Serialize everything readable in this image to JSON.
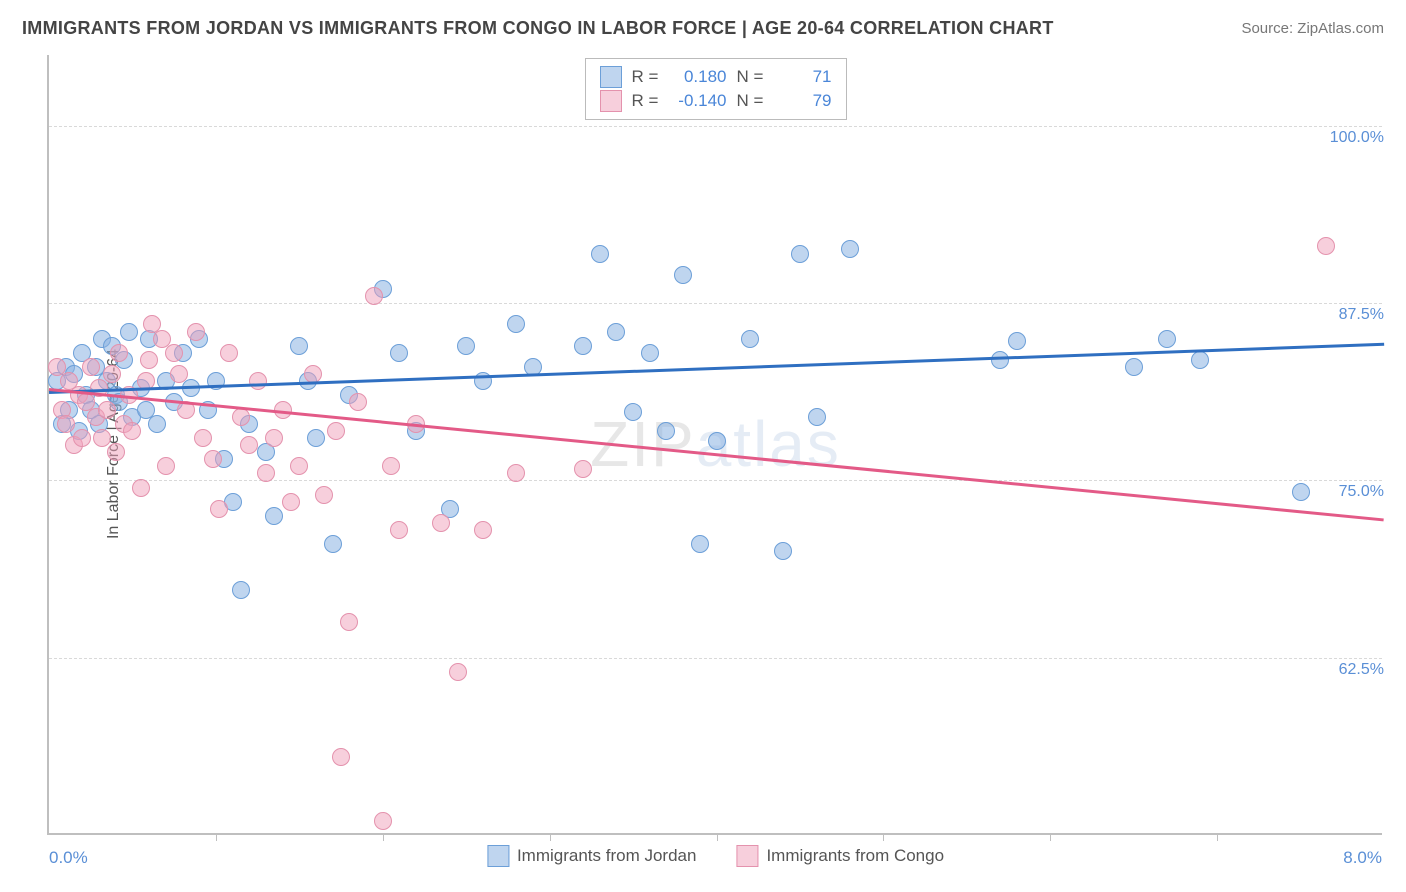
{
  "title": "IMMIGRANTS FROM JORDAN VS IMMIGRANTS FROM CONGO IN LABOR FORCE | AGE 20-64 CORRELATION CHART",
  "source": "Source: ZipAtlas.com",
  "watermark": {
    "part1": "ZIP",
    "part2": "atlas"
  },
  "chart": {
    "type": "scatter",
    "xlim": [
      0,
      8
    ],
    "ylim": [
      50,
      105
    ],
    "xlabel_min": "0.0%",
    "xlabel_max": "8.0%",
    "y_axis_title": "In Labor Force | Age 20-64",
    "x_tick_positions": [
      1,
      2,
      3,
      4,
      5,
      6,
      7
    ],
    "y_gridlines": [
      {
        "value": 62.5,
        "label": "62.5%"
      },
      {
        "value": 75.0,
        "label": "75.0%"
      },
      {
        "value": 87.5,
        "label": "87.5%"
      },
      {
        "value": 100.0,
        "label": "100.0%"
      }
    ],
    "grid_color": "#d9d9d9",
    "background_color": "#ffffff",
    "series": [
      {
        "name": "Immigrants from Jordan",
        "fill": "rgba(138,179,225,0.55)",
        "stroke": "#6c9fd8",
        "line_color": "#2f6fc1",
        "R": "0.180",
        "N": "71",
        "trend": {
          "x1": 0,
          "y1": 81.3,
          "x2": 8,
          "y2": 84.7
        },
        "points": [
          [
            0.05,
            82
          ],
          [
            0.08,
            79
          ],
          [
            0.1,
            83
          ],
          [
            0.12,
            80
          ],
          [
            0.15,
            82.5
          ],
          [
            0.18,
            78.5
          ],
          [
            0.2,
            84
          ],
          [
            0.22,
            81
          ],
          [
            0.25,
            80
          ],
          [
            0.28,
            83
          ],
          [
            0.3,
            79
          ],
          [
            0.32,
            85
          ],
          [
            0.35,
            82
          ],
          [
            0.38,
            84.5
          ],
          [
            0.4,
            81
          ],
          [
            0.42,
            80.5
          ],
          [
            0.45,
            83.5
          ],
          [
            0.48,
            85.5
          ],
          [
            0.5,
            79.5
          ],
          [
            0.55,
            81.5
          ],
          [
            0.58,
            80
          ],
          [
            0.6,
            85
          ],
          [
            0.65,
            79
          ],
          [
            0.7,
            82
          ],
          [
            0.75,
            80.5
          ],
          [
            0.8,
            84
          ],
          [
            0.85,
            81.5
          ],
          [
            0.9,
            85
          ],
          [
            0.95,
            80
          ],
          [
            1.0,
            82
          ],
          [
            1.05,
            76.5
          ],
          [
            1.1,
            73.5
          ],
          [
            1.15,
            67.3
          ],
          [
            1.2,
            79
          ],
          [
            1.3,
            77
          ],
          [
            1.35,
            72.5
          ],
          [
            1.5,
            84.5
          ],
          [
            1.55,
            82
          ],
          [
            1.6,
            78
          ],
          [
            1.7,
            70.5
          ],
          [
            1.8,
            81
          ],
          [
            2.0,
            88.5
          ],
          [
            2.1,
            84
          ],
          [
            2.2,
            78.5
          ],
          [
            2.4,
            73
          ],
          [
            2.5,
            84.5
          ],
          [
            2.6,
            82
          ],
          [
            2.8,
            86
          ],
          [
            2.9,
            83
          ],
          [
            3.2,
            84.5
          ],
          [
            3.3,
            91
          ],
          [
            3.4,
            85.5
          ],
          [
            3.5,
            79.8
          ],
          [
            3.6,
            84
          ],
          [
            3.7,
            78.5
          ],
          [
            3.8,
            89.5
          ],
          [
            3.9,
            70.5
          ],
          [
            4.0,
            77.8
          ],
          [
            4.2,
            85
          ],
          [
            4.4,
            70
          ],
          [
            4.5,
            91
          ],
          [
            4.6,
            79.5
          ],
          [
            4.8,
            91.3
          ],
          [
            5.7,
            83.5
          ],
          [
            5.8,
            84.8
          ],
          [
            6.5,
            83
          ],
          [
            6.7,
            85
          ],
          [
            6.9,
            83.5
          ],
          [
            7.5,
            74.2
          ]
        ]
      },
      {
        "name": "Immigrants from Congo",
        "fill": "rgba(240,160,185,0.5)",
        "stroke": "#e492ad",
        "line_color": "#e35a87",
        "R": "-0.140",
        "N": "79",
        "trend": {
          "x1": 0,
          "y1": 81.5,
          "x2": 8,
          "y2": 72.3
        },
        "points": [
          [
            0.05,
            83
          ],
          [
            0.08,
            80
          ],
          [
            0.1,
            79
          ],
          [
            0.12,
            82
          ],
          [
            0.15,
            77.5
          ],
          [
            0.18,
            81
          ],
          [
            0.2,
            78
          ],
          [
            0.22,
            80.5
          ],
          [
            0.25,
            83
          ],
          [
            0.28,
            79.5
          ],
          [
            0.3,
            81.5
          ],
          [
            0.32,
            78
          ],
          [
            0.35,
            80
          ],
          [
            0.38,
            82.5
          ],
          [
            0.4,
            77
          ],
          [
            0.42,
            84
          ],
          [
            0.45,
            79
          ],
          [
            0.48,
            81
          ],
          [
            0.5,
            78.5
          ],
          [
            0.55,
            74.5
          ],
          [
            0.58,
            82
          ],
          [
            0.6,
            83.5
          ],
          [
            0.62,
            86
          ],
          [
            0.68,
            85
          ],
          [
            0.7,
            76
          ],
          [
            0.75,
            84
          ],
          [
            0.78,
            82.5
          ],
          [
            0.82,
            80
          ],
          [
            0.88,
            85.5
          ],
          [
            0.92,
            78
          ],
          [
            0.98,
            76.5
          ],
          [
            1.02,
            73
          ],
          [
            1.08,
            84
          ],
          [
            1.15,
            79.5
          ],
          [
            1.2,
            77.5
          ],
          [
            1.25,
            82
          ],
          [
            1.3,
            75.5
          ],
          [
            1.35,
            78
          ],
          [
            1.4,
            80
          ],
          [
            1.45,
            73.5
          ],
          [
            1.5,
            76
          ],
          [
            1.58,
            82.5
          ],
          [
            1.65,
            74
          ],
          [
            1.72,
            78.5
          ],
          [
            1.75,
            55.5
          ],
          [
            1.8,
            65
          ],
          [
            1.85,
            80.5
          ],
          [
            1.95,
            88
          ],
          [
            2.0,
            51
          ],
          [
            2.05,
            76
          ],
          [
            2.1,
            71.5
          ],
          [
            2.2,
            79
          ],
          [
            2.35,
            72
          ],
          [
            2.45,
            61.5
          ],
          [
            2.6,
            71.5
          ],
          [
            2.8,
            75.5
          ],
          [
            3.2,
            75.8
          ],
          [
            7.65,
            91.5
          ]
        ]
      }
    ],
    "legend_top": [
      {
        "series_idx": 0,
        "r_label": "R =",
        "n_label": "N ="
      },
      {
        "series_idx": 1,
        "r_label": "R =",
        "n_label": "N ="
      }
    ]
  }
}
